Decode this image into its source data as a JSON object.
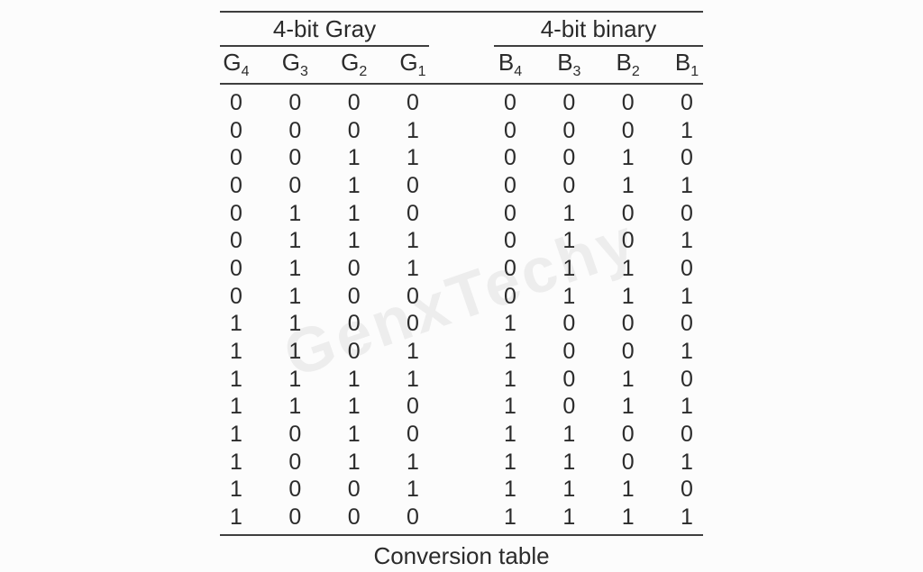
{
  "chart_data": {
    "type": "table",
    "caption": "Conversion table",
    "groups": [
      {
        "title": "4-bit Gray",
        "columns": [
          {
            "base": "G",
            "sub": "4"
          },
          {
            "base": "G",
            "sub": "3"
          },
          {
            "base": "G",
            "sub": "2"
          },
          {
            "base": "G",
            "sub": "1"
          }
        ]
      },
      {
        "title": "4-bit binary",
        "columns": [
          {
            "base": "B",
            "sub": "4"
          },
          {
            "base": "B",
            "sub": "3"
          },
          {
            "base": "B",
            "sub": "2"
          },
          {
            "base": "B",
            "sub": "1"
          }
        ]
      }
    ],
    "rows": [
      {
        "gray": "0000",
        "binary": "0000"
      },
      {
        "gray": "0001",
        "binary": "0001"
      },
      {
        "gray": "0011",
        "binary": "0010"
      },
      {
        "gray": "0010",
        "binary": "0011"
      },
      {
        "gray": "0110",
        "binary": "0100"
      },
      {
        "gray": "0111",
        "binary": "0101"
      },
      {
        "gray": "0101",
        "binary": "0110"
      },
      {
        "gray": "0100",
        "binary": "0111"
      },
      {
        "gray": "1100",
        "binary": "1000"
      },
      {
        "gray": "1101",
        "binary": "1001"
      },
      {
        "gray": "1111",
        "binary": "1010"
      },
      {
        "gray": "1110",
        "binary": "1011"
      },
      {
        "gray": "1010",
        "binary": "1100"
      },
      {
        "gray": "1011",
        "binary": "1101"
      },
      {
        "gray": "1001",
        "binary": "1110"
      },
      {
        "gray": "1000",
        "binary": "1111"
      }
    ]
  },
  "watermark": {
    "text": "GenxTechy"
  },
  "colors": {
    "background": "#fcfcfc",
    "text": "#2b2b2b",
    "rule": "#3e3e3e",
    "watermark": "#ededed"
  }
}
